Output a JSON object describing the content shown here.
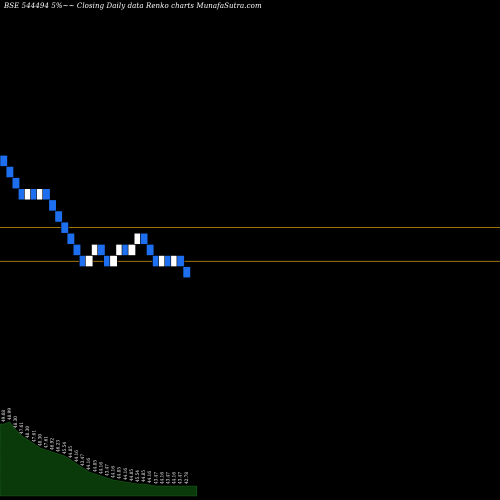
{
  "title": "BSE 544494  5%~~  Closing Daily data  Renko  charts MunafaSutra.com",
  "colors": {
    "background": "#000000",
    "bullish_brick": "#ffffff",
    "bearish_brick": "#1e6ff0",
    "brick_stroke": "#000000",
    "reference_line": "#b8860b",
    "volume_area": "#0a3a0a",
    "volume_label": "#ffffff"
  },
  "chart_data": {
    "type": "renko",
    "bricks": [
      {
        "direction": "down",
        "price": 49.68
      },
      {
        "direction": "down",
        "price": 48.99
      },
      {
        "direction": "down",
        "price": 48.3
      },
      {
        "direction": "down",
        "price": 47.61
      },
      {
        "direction": "up",
        "price": 48.3
      },
      {
        "direction": "down",
        "price": 47.61
      },
      {
        "direction": "up",
        "price": 48.3
      },
      {
        "direction": "down",
        "price": 47.61
      },
      {
        "direction": "down",
        "price": 46.92
      },
      {
        "direction": "down",
        "price": 46.23
      },
      {
        "direction": "down",
        "price": 45.54
      },
      {
        "direction": "down",
        "price": 44.85
      },
      {
        "direction": "down",
        "price": 44.16
      },
      {
        "direction": "down",
        "price": 43.47
      },
      {
        "direction": "up",
        "price": 44.16
      },
      {
        "direction": "up",
        "price": 44.85
      },
      {
        "direction": "down",
        "price": 44.16
      },
      {
        "direction": "down",
        "price": 43.47
      },
      {
        "direction": "up",
        "price": 44.16
      },
      {
        "direction": "up",
        "price": 44.85
      },
      {
        "direction": "down",
        "price": 44.16
      },
      {
        "direction": "up",
        "price": 44.85
      },
      {
        "direction": "up",
        "price": 45.54
      },
      {
        "direction": "down",
        "price": 44.85
      },
      {
        "direction": "down",
        "price": 44.16
      },
      {
        "direction": "down",
        "price": 43.47
      },
      {
        "direction": "up",
        "price": 44.16
      },
      {
        "direction": "down",
        "price": 43.47
      },
      {
        "direction": "up",
        "price": 44.16
      },
      {
        "direction": "down",
        "price": 43.47
      },
      {
        "direction": "down",
        "price": 42.78
      }
    ],
    "reference_lines": [
      45.9,
      43.8
    ],
    "ylim": [
      29,
      60
    ],
    "volume_labels": [
      "49.68",
      "48.99",
      "48.30",
      "47.61",
      "48.30",
      "47.61",
      "48.30",
      "47.61",
      "46.92",
      "46.23",
      "45.54",
      "44.85",
      "44.16",
      "43.47",
      "44.16",
      "44.85",
      "44.16",
      "43.47",
      "44.16",
      "44.85",
      "44.16",
      "44.85",
      "45.54",
      "44.85",
      "44.16",
      "43.47",
      "44.16",
      "43.47",
      "44.16",
      "43.47",
      "42.78"
    ],
    "volume_profile": [
      0.72,
      0.74,
      0.66,
      0.6,
      0.56,
      0.52,
      0.48,
      0.46,
      0.44,
      0.42,
      0.4,
      0.36,
      0.32,
      0.28,
      0.24,
      0.22,
      0.2,
      0.18,
      0.16,
      0.15,
      0.14,
      0.13,
      0.12,
      0.12,
      0.11,
      0.1,
      0.1,
      0.1,
      0.1,
      0.1,
      0.1
    ]
  }
}
